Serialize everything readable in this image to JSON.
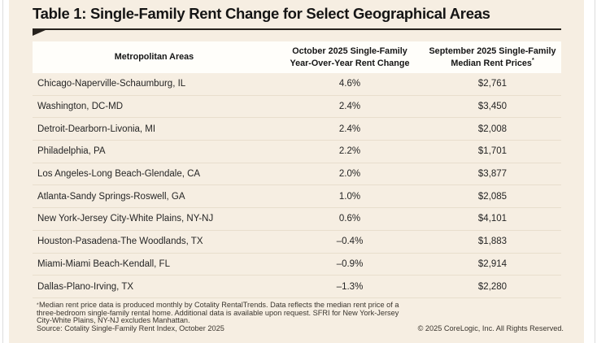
{
  "title": "Table 1: Single-Family Rent Change for Select Geographical Areas",
  "table": {
    "headers": {
      "metro": "Metropolitan Areas",
      "change_line1": "October 2025 Single-Family",
      "change_line2": "Year-Over-Year Rent Change",
      "price_line1": "September 2025 Single-Family",
      "price_line2": "Median Rent Prices",
      "price_sup": "*"
    },
    "rows": [
      {
        "metro": "Chicago-Naperville-Schaumburg, IL",
        "change": "4.6%",
        "price": "$2,761"
      },
      {
        "metro": "Washington, DC-MD",
        "change": "2.4%",
        "price": "$3,450"
      },
      {
        "metro": "Detroit-Dearborn-Livonia, MI",
        "change": "2.4%",
        "price": "$2,008"
      },
      {
        "metro": "Philadelphia, PA",
        "change": "2.2%",
        "price": "$1,701"
      },
      {
        "metro": "Los Angeles-Long Beach-Glendale, CA",
        "change": "2.0%",
        "price": "$3,877"
      },
      {
        "metro": "Atlanta-Sandy Springs-Roswell, GA",
        "change": "1.0%",
        "price": "$2,085"
      },
      {
        "metro": "New York-Jersey City-White Plains, NY-NJ",
        "change": "0.6%",
        "price": "$4,101"
      },
      {
        "metro": "Houston-Pasadena-The Woodlands, TX",
        "change": "–0.4%",
        "price": "$1,883"
      },
      {
        "metro": "Miami-Miami Beach-Kendall, FL",
        "change": "–0.9%",
        "price": "$2,914"
      },
      {
        "metro": "Dallas-Plano-Irving, TX",
        "change": "–1.3%",
        "price": "$2,280"
      }
    ]
  },
  "footnote": {
    "sup": "*",
    "lines": [
      "Median rent price data is produced monthly by Cotality RentalTrends. Data reflects the median rent price of a",
      "three-bedroom single-family rental home. Additional data is available upon request. SFRI for New York-Jersey",
      "City-White Plains, NY-NJ excludes Manhattan."
    ],
    "source": "Source: Cotality Single-Family Rent Index, October 2025",
    "copyright": "© 2025 CoreLogic, Inc. All Rights Reserved."
  },
  "colors": {
    "panel_bg": "#f6eee2",
    "header_bg": "#fffefa",
    "rule": "#27221d",
    "divider": "#e8decd",
    "text": "#252525",
    "footnote_text": "#3a352e"
  }
}
